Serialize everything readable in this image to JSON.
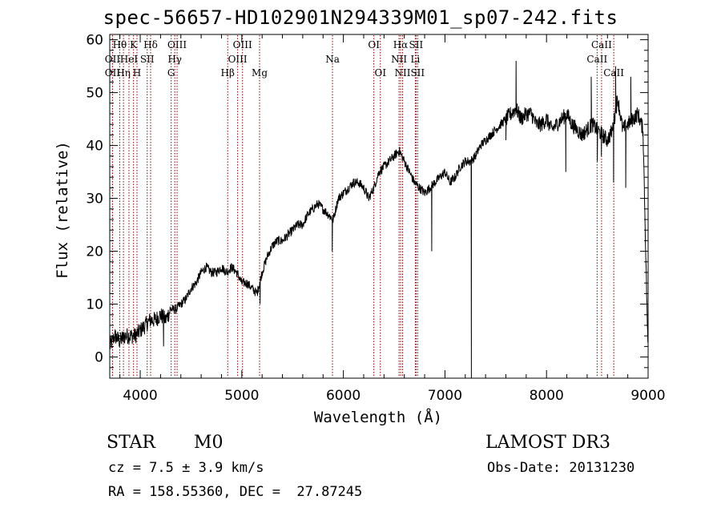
{
  "chart_data": {
    "type": "line",
    "title": "spec-56657-HD102901N294339M01_sp07-242.fits",
    "xlabel": "Wavelength (Å)",
    "ylabel": "Flux (relative)",
    "xlim": [
      3700,
      9000
    ],
    "ylim": [
      -4,
      61
    ],
    "xticks": [
      4000,
      5000,
      6000,
      7000,
      8000,
      9000
    ],
    "yticks": [
      0,
      10,
      20,
      30,
      40,
      50,
      60
    ],
    "continuum": {
      "x": [
        3700,
        3750,
        3800,
        3850,
        3900,
        3950,
        4000,
        4050,
        4100,
        4150,
        4200,
        4250,
        4300,
        4350,
        4400,
        4450,
        4500,
        4550,
        4600,
        4650,
        4700,
        4750,
        4800,
        4850,
        4900,
        4950,
        5000,
        5050,
        5100,
        5150,
        5200,
        5250,
        5300,
        5350,
        5400,
        5450,
        5500,
        5550,
        5600,
        5650,
        5700,
        5750,
        5800,
        5850,
        5900,
        5950,
        6000,
        6050,
        6100,
        6150,
        6200,
        6250,
        6300,
        6350,
        6400,
        6450,
        6500,
        6550,
        6600,
        6650,
        6700,
        6750,
        6800,
        6850,
        6900,
        6950,
        7000,
        7050,
        7100,
        7150,
        7200,
        7250,
        7300,
        7350,
        7400,
        7450,
        7500,
        7550,
        7600,
        7650,
        7700,
        7750,
        7800,
        7850,
        7900,
        7950,
        8000,
        8050,
        8100,
        8150,
        8200,
        8250,
        8300,
        8350,
        8400,
        8450,
        8500,
        8550,
        8600,
        8650,
        8700,
        8750,
        8800,
        8850,
        8900,
        8950,
        9000
      ],
      "y": [
        2,
        4,
        3,
        4,
        4,
        4,
        5,
        6,
        7,
        7,
        8,
        7,
        9,
        9,
        10,
        11,
        13,
        14,
        16,
        17,
        16,
        16,
        17,
        16,
        17,
        16,
        14,
        14,
        13,
        12,
        16,
        19,
        21,
        22,
        22,
        23,
        24,
        25,
        25,
        27,
        28,
        29,
        28,
        27,
        26,
        30,
        31,
        32,
        33,
        33,
        32,
        30,
        32,
        35,
        36,
        37,
        38,
        39,
        37,
        35,
        33,
        32,
        31,
        32,
        33,
        34,
        35,
        33,
        34,
        36,
        37,
        37,
        38,
        40,
        41,
        42,
        43,
        44,
        45,
        46,
        47,
        45,
        46,
        46,
        44,
        44,
        45,
        43,
        44,
        45,
        46,
        44,
        43,
        42,
        43,
        44,
        43,
        42,
        41,
        43,
        49,
        43,
        44,
        45,
        46,
        43,
        0
      ]
    },
    "absorption_features": [
      {
        "x": 4230,
        "y": 2
      },
      {
        "x": 5180,
        "y": 10
      },
      {
        "x": 5890,
        "y": 20
      },
      {
        "x": 6870,
        "y": 20
      },
      {
        "x": 7260,
        "y": -4
      },
      {
        "x": 7600,
        "y": 41
      },
      {
        "x": 8190,
        "y": 35
      },
      {
        "x": 8500,
        "y": 37
      },
      {
        "x": 8540,
        "y": 38
      },
      {
        "x": 8660,
        "y": 33
      },
      {
        "x": 8780,
        "y": 32
      }
    ],
    "emission_features": [
      {
        "x": 7700,
        "y": 56
      },
      {
        "x": 8440,
        "y": 53
      },
      {
        "x": 8680,
        "y": 55
      },
      {
        "x": 8830,
        "y": 53
      }
    ],
    "line_markers": [
      {
        "label": "Hθ",
        "x": 3798,
        "row": 0
      },
      {
        "label": "OII",
        "x": 3727,
        "row": 1
      },
      {
        "label": "OII",
        "x": 3727,
        "row": 2
      },
      {
        "label": "Hη",
        "x": 3835,
        "row": 2
      },
      {
        "label": "K",
        "x": 3934,
        "row": 0
      },
      {
        "label": "HeI",
        "x": 3889,
        "row": 1
      },
      {
        "label": "H",
        "x": 3968,
        "row": 2
      },
      {
        "label": "Hδ",
        "x": 4102,
        "row": 0
      },
      {
        "label": "SII",
        "x": 4069,
        "row": 1
      },
      {
        "label": "OIII",
        "x": 4363,
        "row": 0
      },
      {
        "label": "Hγ",
        "x": 4340,
        "row": 1
      },
      {
        "label": "G",
        "x": 4305,
        "row": 2
      },
      {
        "label": "OIII",
        "x": 5007,
        "row": 0
      },
      {
        "label": "OIII",
        "x": 4959,
        "row": 1
      },
      {
        "label": "Hβ",
        "x": 4861,
        "row": 2
      },
      {
        "label": "Mg",
        "x": 5175,
        "row": 2
      },
      {
        "label": "Na",
        "x": 5893,
        "row": 1
      },
      {
        "label": "OI",
        "x": 6300,
        "row": 0
      },
      {
        "label": "OI",
        "x": 6364,
        "row": 2
      },
      {
        "label": "Hα",
        "x": 6563,
        "row": 0
      },
      {
        "label": "NII",
        "x": 6548,
        "row": 1
      },
      {
        "label": "NII",
        "x": 6583,
        "row": 2
      },
      {
        "label": "SII",
        "x": 6716,
        "row": 0
      },
      {
        "label": "Li",
        "x": 6708,
        "row": 1
      },
      {
        "label": "SII",
        "x": 6731,
        "row": 2
      },
      {
        "label": "CaII",
        "x": 8542,
        "row": 0
      },
      {
        "label": "CaII",
        "x": 8498,
        "row": 1
      },
      {
        "label": "CaII",
        "x": 8662,
        "row": 2
      }
    ]
  },
  "info": {
    "class": "STAR",
    "subclass": "M0",
    "survey": "LAMOST DR3",
    "cz": "cz = 7.5 ± 3.9 km/s",
    "obs_date": "Obs-Date: 20131230",
    "radec": "RA = 158.55360, DEC =  27.87245"
  },
  "colors": {
    "axis": "#000000",
    "line": "#000000",
    "marker": "#8b0000"
  }
}
